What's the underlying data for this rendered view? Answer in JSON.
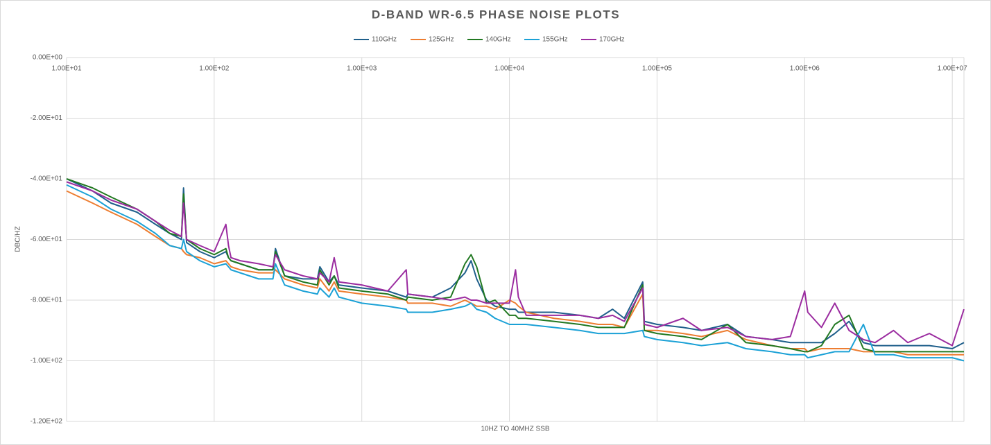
{
  "chart_data": {
    "type": "line",
    "title": "D-BAND WR-6.5 PHASE NOISE PLOTS",
    "x_label": "10HZ TO 40MHZ SSB",
    "y_label": "DBC/HZ",
    "xscale": "log",
    "grid": true,
    "legend": "top",
    "xlim": [
      10,
      12000000
    ],
    "ylim": [
      -120,
      0
    ],
    "xticks": [
      {
        "value": 10,
        "label": "1.00E+01"
      },
      {
        "value": 100,
        "label": "1.00E+02"
      },
      {
        "value": 1000,
        "label": "1.00E+03"
      },
      {
        "value": 10000,
        "label": "1.00E+04"
      },
      {
        "value": 100000,
        "label": "1.00E+05"
      },
      {
        "value": 1000000,
        "label": "1.00E+06"
      },
      {
        "value": 10000000,
        "label": "1.00E+07"
      }
    ],
    "yticks": [
      {
        "value": 0,
        "label": "0.00E+00"
      },
      {
        "value": -20,
        "label": "-2.00E+01"
      },
      {
        "value": -40,
        "label": "-4.00E+01"
      },
      {
        "value": -60,
        "label": "-6.00E+01"
      },
      {
        "value": -80,
        "label": "-8.00E+01"
      },
      {
        "value": -100,
        "label": "-1.00E+02"
      },
      {
        "value": -120,
        "label": "-1.20E+02"
      }
    ],
    "x": [
      10,
      15,
      20,
      30,
      40,
      50,
      60,
      62,
      65,
      80,
      100,
      120,
      125,
      130,
      150,
      200,
      250,
      260,
      300,
      400,
      500,
      520,
      600,
      650,
      700,
      1000,
      1500,
      2000,
      2050,
      3000,
      4000,
      5000,
      5500,
      6000,
      7000,
      8000,
      10000,
      11000,
      11500,
      13000,
      20000,
      30000,
      40000,
      50000,
      60000,
      80000,
      82000,
      100000,
      150000,
      200000,
      300000,
      400000,
      600000,
      800000,
      1000000,
      1050000,
      1300000,
      1600000,
      2000000,
      2500000,
      3000000,
      4000000,
      5000000,
      7000000,
      10000000,
      12000000
    ],
    "series": [
      {
        "name": "110GHz",
        "color": "#1f5f8b",
        "values": [
          -40,
          -44,
          -48,
          -51,
          -55,
          -58,
          -60,
          -43,
          -61,
          -64,
          -66,
          -64,
          -66,
          -67,
          -68,
          -70,
          -70,
          -63,
          -72,
          -73,
          -73,
          -69,
          -74,
          -72,
          -75,
          -76,
          -77,
          -79,
          -78,
          -79,
          -76,
          -71,
          -67,
          -73,
          -80,
          -82,
          -83,
          -83,
          -84,
          -84,
          -84,
          -85,
          -86,
          -83,
          -86,
          -74,
          -87,
          -88,
          -89,
          -90,
          -88,
          -92,
          -93,
          -94,
          -94,
          -94,
          -94,
          -91,
          -87,
          -94,
          -95,
          -95,
          -95,
          -95,
          -96,
          -94
        ]
      },
      {
        "name": "125GHz",
        "color": "#ed7d31",
        "values": [
          -44,
          -48,
          -51,
          -55,
          -59,
          -62,
          -63,
          -64,
          -65,
          -66,
          -68,
          -67,
          -68,
          -69,
          -70,
          -71,
          -71,
          -70,
          -73,
          -75,
          -76,
          -73,
          -77,
          -74,
          -77,
          -78,
          -79,
          -80,
          -81,
          -81,
          -82,
          -80,
          -81,
          -82,
          -82,
          -83,
          -80,
          -81,
          -82,
          -84,
          -86,
          -87,
          -88,
          -88,
          -89,
          -78,
          -90,
          -90,
          -91,
          -92,
          -90,
          -93,
          -95,
          -96,
          -96,
          -97,
          -96,
          -96,
          -96,
          -97,
          -97,
          -97,
          -98,
          -98,
          -98,
          -98
        ]
      },
      {
        "name": "140GHz",
        "color": "#217821",
        "values": [
          -40,
          -43,
          -46,
          -50,
          -54,
          -58,
          -59,
          -45,
          -60,
          -63,
          -65,
          -63,
          -66,
          -67,
          -68,
          -70,
          -70,
          -64,
          -72,
          -74,
          -75,
          -70,
          -75,
          -72,
          -76,
          -77,
          -78,
          -80,
          -79,
          -80,
          -79,
          -68,
          -65,
          -69,
          -81,
          -80,
          -85,
          -85,
          -86,
          -86,
          -87,
          -88,
          -89,
          -89,
          -89,
          -75,
          -90,
          -91,
          -92,
          -93,
          -88,
          -94,
          -95,
          -96,
          -97,
          -97,
          -95,
          -88,
          -85,
          -96,
          -97,
          -97,
          -97,
          -97,
          -97,
          -97
        ]
      },
      {
        "name": "155GHz",
        "color": "#1ba1d6",
        "values": [
          -42,
          -46,
          -50,
          -54,
          -58,
          -62,
          -63,
          -60,
          -64,
          -67,
          -69,
          -68,
          -69,
          -70,
          -71,
          -73,
          -73,
          -68,
          -75,
          -77,
          -78,
          -76,
          -79,
          -76,
          -79,
          -81,
          -82,
          -83,
          -84,
          -84,
          -83,
          -82,
          -81,
          -83,
          -84,
          -86,
          -88,
          -88,
          -88,
          -88,
          -89,
          -90,
          -91,
          -91,
          -91,
          -90,
          -92,
          -93,
          -94,
          -95,
          -94,
          -96,
          -97,
          -98,
          -98,
          -99,
          -98,
          -97,
          -97,
          -88,
          -98,
          -98,
          -99,
          -99,
          -99,
          -100
        ]
      },
      {
        "name": "170GHz",
        "color": "#9b2ca0",
        "values": [
          -41,
          -44,
          -47,
          -50,
          -54,
          -57,
          -59,
          -48,
          -60,
          -62,
          -64,
          -55,
          -62,
          -66,
          -67,
          -68,
          -69,
          -65,
          -70,
          -72,
          -73,
          -71,
          -74,
          -66,
          -74,
          -75,
          -77,
          -70,
          -78,
          -79,
          -80,
          -79,
          -80,
          -80,
          -81,
          -81,
          -81,
          -70,
          -79,
          -85,
          -85,
          -85,
          -86,
          -85,
          -87,
          -76,
          -88,
          -89,
          -86,
          -90,
          -89,
          -92,
          -93,
          -92,
          -77,
          -84,
          -89,
          -81,
          -90,
          -93,
          -94,
          -90,
          -94,
          -91,
          -95,
          -83
        ]
      }
    ]
  }
}
